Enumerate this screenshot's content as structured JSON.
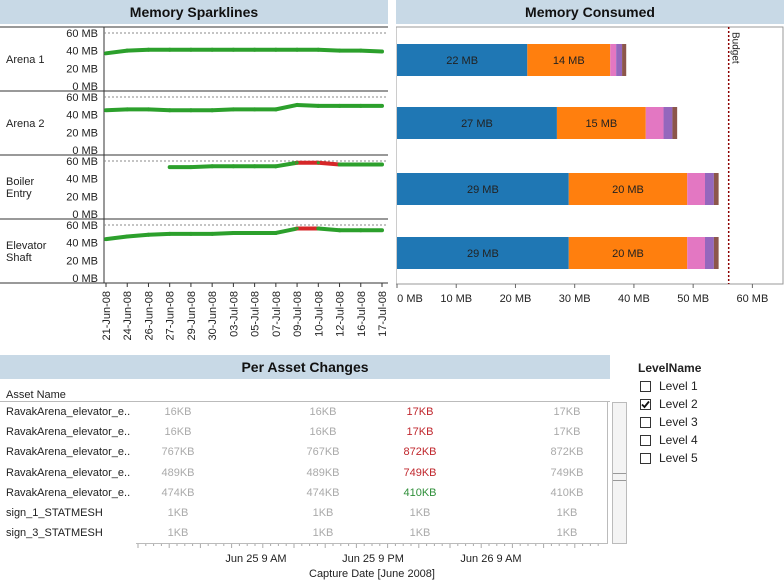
{
  "sparklines": {
    "title": "Memory Sparklines",
    "rows": [
      {
        "label_lines": [
          "Arena 1"
        ],
        "ticks": [
          "60 MB",
          "40 MB",
          "20 MB",
          "0 MB"
        ]
      },
      {
        "label_lines": [
          "Arena 2"
        ],
        "ticks": [
          "60 MB",
          "40 MB",
          "20 MB",
          "0 MB"
        ]
      },
      {
        "label_lines": [
          "Boiler",
          "Entry"
        ],
        "ticks": [
          "60 MB",
          "40 MB",
          "20 MB",
          "0 MB"
        ]
      },
      {
        "label_lines": [
          "Elevator",
          "Shaft"
        ],
        "ticks": [
          "60 MB",
          "40 MB",
          "20 MB",
          "0 MB"
        ]
      }
    ],
    "dates": [
      "21-Jun-08",
      "24-Jun-08",
      "26-Jun-08",
      "27-Jun-08",
      "29-Jun-08",
      "30-Jun-08",
      "03-Jul-08",
      "05-Jul-08",
      "07-Jul-08",
      "09-Jul-08",
      "10-Jul-08",
      "12-Jul-08",
      "16-Jul-08",
      "17-Jul-08"
    ]
  },
  "consumed": {
    "title": "Memory Consumed",
    "budget_label": "Budget",
    "x_ticks": [
      "0 MB",
      "10 MB",
      "20 MB",
      "30 MB",
      "40 MB",
      "50 MB",
      "60 MB"
    ]
  },
  "changes": {
    "title": "Per Asset Changes",
    "column_header": "Asset Name",
    "rows": [
      {
        "name": "RavakArena_elevator_e..",
        "v": [
          "16KB",
          "16KB",
          "17KB",
          "17KB"
        ]
      },
      {
        "name": "RavakArena_elevator_e..",
        "v": [
          "16KB",
          "16KB",
          "17KB",
          "17KB"
        ]
      },
      {
        "name": "RavakArena_elevator_e..",
        "v": [
          "767KB",
          "767KB",
          "872KB",
          "872KB"
        ]
      },
      {
        "name": "RavakArena_elevator_e..",
        "v": [
          "489KB",
          "489KB",
          "749KB",
          "749KB"
        ]
      },
      {
        "name": "RavakArena_elevator_e..",
        "v": [
          "474KB",
          "474KB",
          "410KB",
          "410KB"
        ]
      },
      {
        "name": "sign_1_STATMESH",
        "v": [
          "1KB",
          "1KB",
          "1KB",
          "1KB"
        ]
      },
      {
        "name": "sign_3_STATMESH",
        "v": [
          "1KB",
          "1KB",
          "1KB",
          "1KB"
        ]
      }
    ],
    "value_colors": [
      [
        "#aaaaaa",
        "#aaaaaa",
        "#c0272d",
        "#aaaaaa"
      ],
      [
        "#aaaaaa",
        "#aaaaaa",
        "#c0272d",
        "#aaaaaa"
      ],
      [
        "#aaaaaa",
        "#aaaaaa",
        "#c0272d",
        "#aaaaaa"
      ],
      [
        "#aaaaaa",
        "#aaaaaa",
        "#c0272d",
        "#aaaaaa"
      ],
      [
        "#aaaaaa",
        "#aaaaaa",
        "#2f8f3a",
        "#aaaaaa"
      ],
      [
        "#aaaaaa",
        "#aaaaaa",
        "#aaaaaa",
        "#aaaaaa"
      ],
      [
        "#aaaaaa",
        "#aaaaaa",
        "#aaaaaa",
        "#aaaaaa"
      ]
    ],
    "x_ticks": [
      "Jun 25 9 AM",
      "Jun 25 9 PM",
      "Jun 26 9 AM"
    ],
    "x_title": "Capture Date [June 2008]"
  },
  "legend": {
    "title": "LevelName",
    "items": [
      {
        "label": "Level 1",
        "checked": false
      },
      {
        "label": "Level 2",
        "checked": true
      },
      {
        "label": "Level 3",
        "checked": false
      },
      {
        "label": "Level 4",
        "checked": false
      },
      {
        "label": "Level 5",
        "checked": false
      }
    ]
  },
  "colors": {
    "spark_green": "#2ca02c",
    "spark_red": "#d62728",
    "seg": [
      "#1f77b4",
      "#ff7f0e",
      "#e377c2",
      "#9467bd",
      "#8c564b"
    ],
    "budget": "#8b0000"
  },
  "chart_data": [
    {
      "type": "line",
      "title": "Memory Sparklines",
      "x": [
        "21-Jun-08",
        "24-Jun-08",
        "26-Jun-08",
        "27-Jun-08",
        "29-Jun-08",
        "30-Jun-08",
        "03-Jul-08",
        "05-Jul-08",
        "07-Jul-08",
        "09-Jul-08",
        "10-Jul-08",
        "12-Jul-08",
        "16-Jul-08",
        "17-Jul-08"
      ],
      "ylim": [
        0,
        60
      ],
      "series": [
        {
          "name": "Arena 1",
          "values": [
            37,
            40,
            41,
            41,
            41,
            41,
            41,
            41,
            41,
            41,
            41,
            40,
            40,
            39
          ]
        },
        {
          "name": "Arena 2",
          "values": [
            45,
            46,
            46,
            45,
            45,
            45,
            46,
            46,
            46,
            51,
            50,
            50,
            50,
            50
          ]
        },
        {
          "name": "Boiler Entry",
          "values": [
            null,
            null,
            null,
            53,
            53,
            54,
            54,
            54,
            54,
            58,
            58,
            56,
            56,
            56
          ]
        },
        {
          "name": "Elevator Shaft",
          "values": [
            44,
            47,
            49,
            50,
            50,
            50,
            51,
            51,
            51,
            56,
            56,
            54,
            54,
            54
          ]
        }
      ]
    },
    {
      "type": "bar",
      "title": "Memory Consumed",
      "categories": [
        "Arena 1",
        "Arena 2",
        "Boiler Entry",
        "Elevator Shaft"
      ],
      "xlim": [
        0,
        65
      ],
      "budget": 56,
      "series": [
        {
          "values": [
            22,
            27,
            29,
            29
          ]
        },
        {
          "values": [
            14,
            15,
            20,
            20
          ]
        },
        {
          "values": [
            1,
            3,
            3,
            3
          ]
        },
        {
          "values": [
            1,
            1.5,
            1.5,
            1.5
          ]
        },
        {
          "values": [
            0.7,
            0.8,
            0.8,
            0.8
          ]
        }
      ],
      "data_labels": [
        [
          "22 MB",
          "14 MB"
        ],
        [
          "27 MB",
          "15 MB"
        ],
        [
          "29 MB",
          "20 MB"
        ],
        [
          "29 MB",
          "20 MB"
        ]
      ]
    }
  ]
}
